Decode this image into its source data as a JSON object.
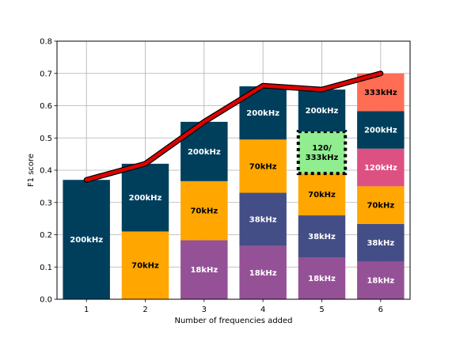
{
  "chart_data": {
    "type": "bar",
    "stacked": true,
    "title": "",
    "xlabel": "Number of frequencies added",
    "ylabel": "F1 score",
    "categories": [
      "1",
      "2",
      "3",
      "4",
      "5",
      "6"
    ],
    "ylim": [
      0,
      0.8
    ],
    "yticks": [
      "0.0",
      "0.1",
      "0.2",
      "0.3",
      "0.4",
      "0.5",
      "0.6",
      "0.7",
      "0.8"
    ],
    "grid": true,
    "colors": {
      "18kHz": "#955196",
      "38kHz": "#444e86",
      "70kHz": "#ffa600",
      "120kHz": "#dd5182",
      "200kHz": "#003f5c",
      "333kHz": "#ff6e54",
      "120/333kHz": "#90ee90",
      "line": "#e00000"
    },
    "stacks": [
      [
        {
          "label": "200kHz",
          "value": 0.37
        }
      ],
      [
        {
          "label": "70kHz",
          "value": 0.21
        },
        {
          "label": "200kHz",
          "value": 0.21
        }
      ],
      [
        {
          "label": "18kHz",
          "value": 0.183
        },
        {
          "label": "70kHz",
          "value": 0.183
        },
        {
          "label": "200kHz",
          "value": 0.184
        }
      ],
      [
        {
          "label": "18kHz",
          "value": 0.165
        },
        {
          "label": "38kHz",
          "value": 0.165
        },
        {
          "label": "70kHz",
          "value": 0.165
        },
        {
          "label": "200kHz",
          "value": 0.165
        }
      ],
      [
        {
          "label": "18kHz",
          "value": 0.13
        },
        {
          "label": "38kHz",
          "value": 0.13
        },
        {
          "label": "70kHz",
          "value": 0.13
        },
        {
          "label": "120/333kHz",
          "value": 0.13,
          "highlight": true
        },
        {
          "label": "200kHz",
          "value": 0.13
        }
      ],
      [
        {
          "label": "18kHz",
          "value": 0.1167
        },
        {
          "label": "38kHz",
          "value": 0.1167
        },
        {
          "label": "70kHz",
          "value": 0.1167
        },
        {
          "label": "120kHz",
          "value": 0.1167
        },
        {
          "label": "200kHz",
          "value": 0.1166
        },
        {
          "label": "333kHz",
          "value": 0.1166
        }
      ]
    ],
    "line": {
      "x": [
        1,
        2,
        3,
        4,
        5,
        6
      ],
      "y": [
        0.37,
        0.42,
        0.55,
        0.662,
        0.65,
        0.7
      ]
    }
  }
}
